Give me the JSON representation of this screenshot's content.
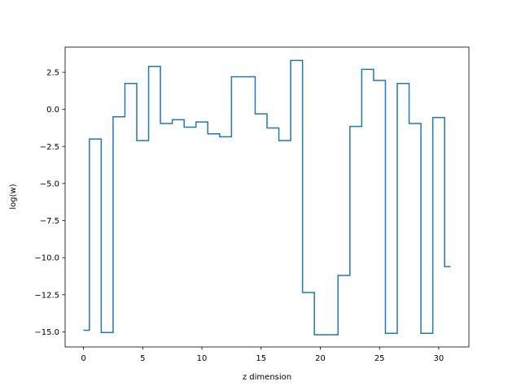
{
  "chart_data": {
    "type": "line",
    "drawstyle": "steps-mid",
    "title": "",
    "xlabel": "z dimension",
    "ylabel": "log(w)",
    "xlim": [
      -1.55,
      32.55
    ],
    "ylim": [
      -16.02,
      4.2
    ],
    "xticks": [
      0,
      5,
      10,
      15,
      20,
      25,
      30
    ],
    "yticks": [
      2.5,
      0.0,
      -2.5,
      -5.0,
      -7.5,
      -10.0,
      -12.5,
      -15.0
    ],
    "ytick_labels": [
      "2.5",
      "0.0",
      "−2.5",
      "−5.0",
      "−7.5",
      "−10.0",
      "−12.5",
      "−15.0"
    ],
    "grid": false,
    "legend": null,
    "series": [
      {
        "color": "#1f77b4",
        "x": [
          0,
          1,
          2,
          3,
          4,
          5,
          6,
          7,
          8,
          9,
          10,
          11,
          12,
          13,
          14,
          15,
          16,
          17,
          18,
          19,
          20,
          21,
          22,
          23,
          24,
          25,
          26,
          27,
          28,
          29,
          30,
          31
        ],
        "values": [
          -14.9,
          -2.0,
          -15.05,
          -0.5,
          1.75,
          -2.1,
          2.9,
          -0.95,
          -0.7,
          -1.2,
          -0.85,
          -1.65,
          -1.85,
          2.2,
          2.2,
          -0.3,
          -1.25,
          -2.1,
          3.3,
          -12.35,
          -15.2,
          -15.2,
          -11.2,
          -1.15,
          2.7,
          1.95,
          -15.1,
          1.75,
          -0.95,
          -15.1,
          -0.55,
          -10.6
        ]
      }
    ]
  }
}
